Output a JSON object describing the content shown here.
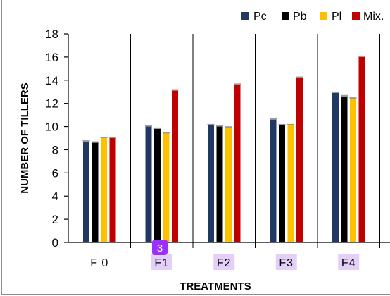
{
  "chart_data": {
    "type": "bar",
    "title": "",
    "xlabel": "TREATMENTS",
    "ylabel": "NUMBER OF TILLERS",
    "ylim": [
      0,
      18
    ],
    "yticks": [
      0,
      2,
      4,
      6,
      8,
      10,
      12,
      14,
      16,
      18
    ],
    "categories": [
      "F 0",
      "F1",
      "F2",
      "F3",
      "F4"
    ],
    "highlighted_categories": [
      "F1",
      "F2",
      "F3",
      "F4"
    ],
    "series": [
      {
        "name": "Pc",
        "color": "#1f3864",
        "values": [
          8.7,
          10.0,
          10.1,
          10.6,
          12.9
        ]
      },
      {
        "name": "Pb",
        "color": "#000000",
        "values": [
          8.6,
          9.8,
          10.0,
          10.1,
          12.6
        ]
      },
      {
        "name": "Pl",
        "color": "#ffc000",
        "values": [
          9.0,
          9.4,
          9.9,
          10.1,
          12.4
        ]
      },
      {
        "name": "Mix.",
        "color": "#c00000",
        "values": [
          9.0,
          13.1,
          13.6,
          14.2,
          16.0
        ]
      }
    ],
    "legend_position": "top-right",
    "grid": false,
    "category_separators": true
  },
  "badge": {
    "text": "3",
    "color": "#9b30ff"
  },
  "highlight_color": "#e3cff7"
}
